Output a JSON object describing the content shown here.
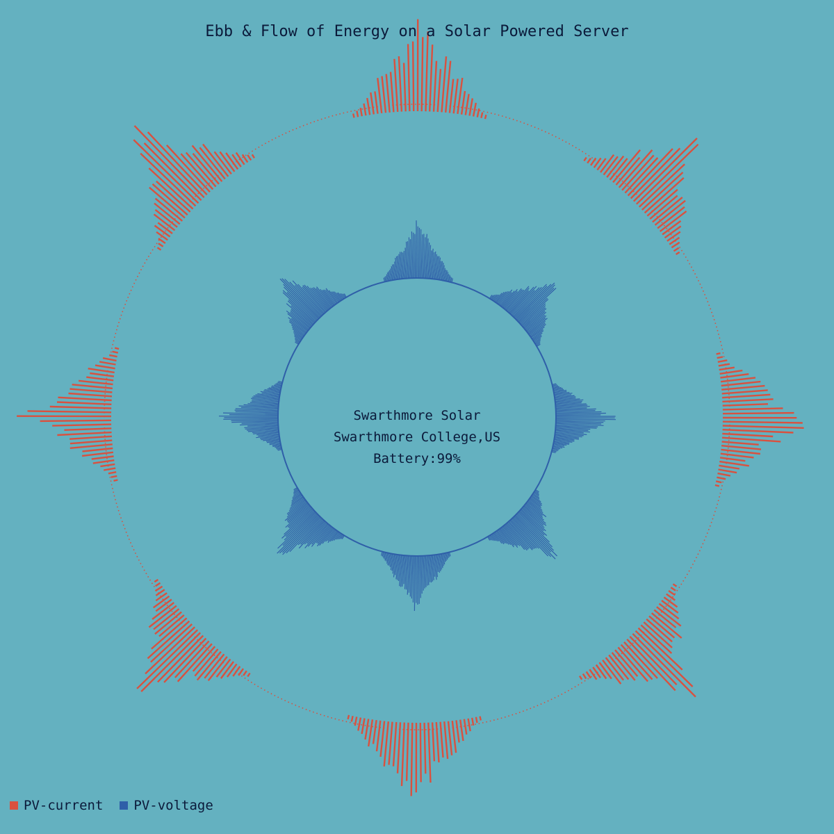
{
  "title": "Ebb & Flow of Energy on a Solar Powered Server",
  "center": {
    "line1": "Swarthmore Solar",
    "line2": "Swarthmore College,US",
    "line3": "Battery:99%"
  },
  "colors": {
    "background": "#64b1c0",
    "pv_current": "#d9513f",
    "pv_voltage": "#2f5fa8",
    "text": "#0b1a3a"
  },
  "chart_data": {
    "type": "radial-bar",
    "legend": "bottom-left",
    "series": [
      {
        "name": "PV-current",
        "color": "#d9513f",
        "ring": "outer",
        "days": 8,
        "values": [
          0.82,
          0.74,
          0.78,
          0.7,
          0.72,
          0.66,
          0.75,
          0.8
        ],
        "peaks": [
          1.0,
          1.0,
          1.0,
          1.0,
          1.0,
          1.0,
          1.0,
          1.0
        ]
      },
      {
        "name": "PV-voltage",
        "color": "#2f5fa8",
        "ring": "inner",
        "days": 8,
        "values": [
          0.9,
          0.88,
          0.92,
          0.9,
          0.86,
          0.9,
          0.88,
          0.9
        ],
        "peaks": [
          1.0,
          1.0,
          1.0,
          1.0,
          1.0,
          1.0,
          1.0,
          1.0
        ]
      }
    ]
  },
  "legend": {
    "items": [
      {
        "label": "PV-current",
        "color": "#d9513f"
      },
      {
        "label": "PV-voltage",
        "color": "#2f5fa8"
      }
    ]
  }
}
